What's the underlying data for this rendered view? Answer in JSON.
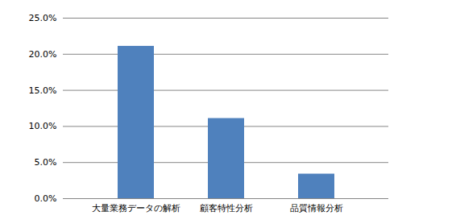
{
  "chart_data": {
    "type": "bar",
    "categories": [
      "大量業務データの解析",
      "顧客特性分析",
      "品質情報分析"
    ],
    "values": [
      21.1,
      11.1,
      3.4
    ],
    "color": "#4f81bd",
    "ylim": [
      0,
      25
    ],
    "yticks": [
      {
        "value": 0,
        "label": "0.0%"
      },
      {
        "value": 5,
        "label": "5.0%"
      },
      {
        "value": 10,
        "label": "10.0%"
      },
      {
        "value": 15,
        "label": "15.0%"
      },
      {
        "value": 20,
        "label": "20.0%"
      },
      {
        "value": 25,
        "label": "25.0%"
      }
    ],
    "grid": true
  }
}
